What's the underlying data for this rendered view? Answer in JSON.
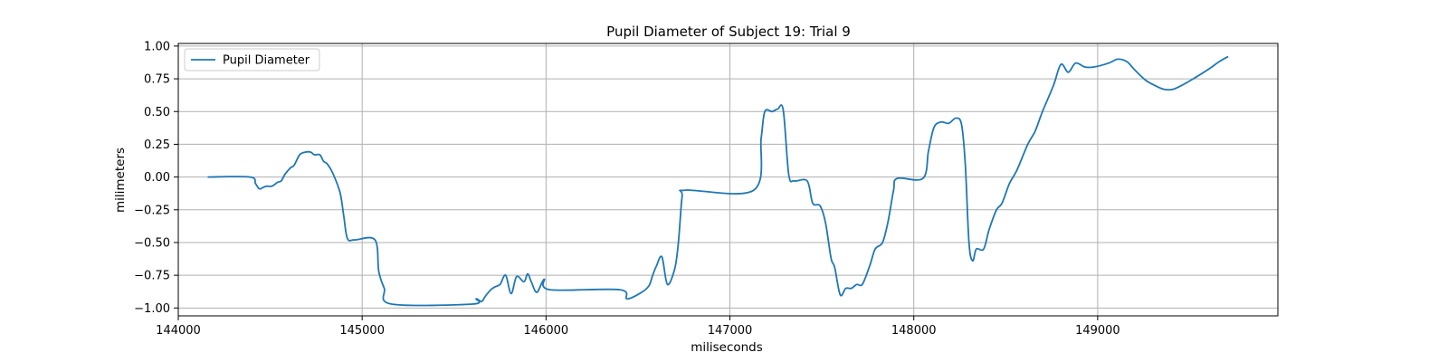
{
  "chart_data": {
    "type": "line",
    "title": "Pupil Diameter of Subject 19: Trial 9",
    "xlabel": "miliseconds",
    "ylabel": "milimeters",
    "xlim": [
      144000,
      149980
    ],
    "ylim": [
      -1.06,
      1.02
    ],
    "xticks": [
      144000,
      145000,
      146000,
      147000,
      148000,
      149000
    ],
    "yticks": [
      -1.0,
      -0.75,
      -0.5,
      -0.25,
      0.0,
      0.25,
      0.5,
      0.75,
      1.0
    ],
    "xtick_labels": [
      "144000",
      "145000",
      "146000",
      "147000",
      "148000",
      "149000"
    ],
    "ytick_labels": [
      "−1.00",
      "−0.75",
      "−0.50",
      "−0.25",
      "0.00",
      "0.25",
      "0.50",
      "0.75",
      "1.00"
    ],
    "grid": true,
    "legend_position": "top-left",
    "colors": {
      "series": "#1f77b4",
      "grid": "#b0b0b0"
    },
    "series": [
      {
        "name": "Pupil Diameter",
        "points": [
          [
            144160,
            0.0
          ],
          [
            144390,
            0.0
          ],
          [
            144420,
            -0.05
          ],
          [
            144440,
            -0.09
          ],
          [
            144460,
            -0.08
          ],
          [
            144480,
            -0.07
          ],
          [
            144510,
            -0.07
          ],
          [
            144540,
            -0.04
          ],
          [
            144560,
            -0.03
          ],
          [
            144580,
            0.02
          ],
          [
            144610,
            0.07
          ],
          [
            144630,
            0.09
          ],
          [
            144660,
            0.17
          ],
          [
            144690,
            0.19
          ],
          [
            144720,
            0.19
          ],
          [
            144740,
            0.17
          ],
          [
            144770,
            0.17
          ],
          [
            144790,
            0.12
          ],
          [
            144810,
            0.1
          ],
          [
            144840,
            0.03
          ],
          [
            144880,
            -0.12
          ],
          [
            144900,
            -0.3
          ],
          [
            144920,
            -0.47
          ],
          [
            144960,
            -0.48
          ],
          [
            145070,
            -0.48
          ],
          [
            145090,
            -0.72
          ],
          [
            145120,
            -0.85
          ],
          [
            145160,
            -0.97
          ],
          [
            145600,
            -0.97
          ],
          [
            145620,
            -0.93
          ],
          [
            145650,
            -0.95
          ],
          [
            145670,
            -0.91
          ],
          [
            145700,
            -0.86
          ],
          [
            145720,
            -0.84
          ],
          [
            145750,
            -0.82
          ],
          [
            145780,
            -0.75
          ],
          [
            145810,
            -0.89
          ],
          [
            145840,
            -0.76
          ],
          [
            145880,
            -0.8
          ],
          [
            145900,
            -0.74
          ],
          [
            145920,
            -0.8
          ],
          [
            145950,
            -0.88
          ],
          [
            145990,
            -0.78
          ],
          [
            146020,
            -0.86
          ],
          [
            146400,
            -0.86
          ],
          [
            146440,
            -0.93
          ],
          [
            146520,
            -0.88
          ],
          [
            146560,
            -0.83
          ],
          [
            146580,
            -0.75
          ],
          [
            146600,
            -0.68
          ],
          [
            146630,
            -0.61
          ],
          [
            146660,
            -0.82
          ],
          [
            146700,
            -0.7
          ],
          [
            146720,
            -0.5
          ],
          [
            146740,
            -0.15
          ],
          [
            146760,
            -0.1
          ],
          [
            147130,
            -0.1
          ],
          [
            147170,
            0.3
          ],
          [
            147190,
            0.5
          ],
          [
            147230,
            0.5
          ],
          [
            147260,
            0.52
          ],
          [
            147290,
            0.51
          ],
          [
            147320,
            0.02
          ],
          [
            147350,
            -0.03
          ],
          [
            147420,
            -0.03
          ],
          [
            147450,
            -0.2
          ],
          [
            147490,
            -0.22
          ],
          [
            147520,
            -0.35
          ],
          [
            147550,
            -0.62
          ],
          [
            147570,
            -0.69
          ],
          [
            147600,
            -0.9
          ],
          [
            147630,
            -0.85
          ],
          [
            147660,
            -0.85
          ],
          [
            147690,
            -0.82
          ],
          [
            147720,
            -0.82
          ],
          [
            147760,
            -0.68
          ],
          [
            147790,
            -0.55
          ],
          [
            147830,
            -0.5
          ],
          [
            147860,
            -0.34
          ],
          [
            147890,
            -0.1
          ],
          [
            147910,
            -0.01
          ],
          [
            148050,
            -0.01
          ],
          [
            148080,
            0.2
          ],
          [
            148110,
            0.38
          ],
          [
            148150,
            0.42
          ],
          [
            148190,
            0.41
          ],
          [
            148230,
            0.45
          ],
          [
            148260,
            0.4
          ],
          [
            148280,
            0.1
          ],
          [
            148300,
            -0.5
          ],
          [
            148320,
            -0.64
          ],
          [
            148340,
            -0.55
          ],
          [
            148380,
            -0.55
          ],
          [
            148410,
            -0.4
          ],
          [
            148450,
            -0.25
          ],
          [
            148480,
            -0.2
          ],
          [
            148520,
            -0.05
          ],
          [
            148560,
            0.05
          ],
          [
            148620,
            0.25
          ],
          [
            148660,
            0.35
          ],
          [
            148700,
            0.5
          ],
          [
            148760,
            0.7
          ],
          [
            148800,
            0.86
          ],
          [
            148840,
            0.8
          ],
          [
            148880,
            0.87
          ],
          [
            148930,
            0.84
          ],
          [
            148980,
            0.84
          ],
          [
            149060,
            0.87
          ],
          [
            149110,
            0.9
          ],
          [
            149160,
            0.88
          ],
          [
            149200,
            0.82
          ],
          [
            149260,
            0.74
          ],
          [
            149310,
            0.7
          ],
          [
            149360,
            0.67
          ],
          [
            149410,
            0.67
          ],
          [
            149470,
            0.71
          ],
          [
            149520,
            0.75
          ],
          [
            149600,
            0.82
          ],
          [
            149660,
            0.88
          ],
          [
            149710,
            0.92
          ]
        ]
      }
    ]
  }
}
